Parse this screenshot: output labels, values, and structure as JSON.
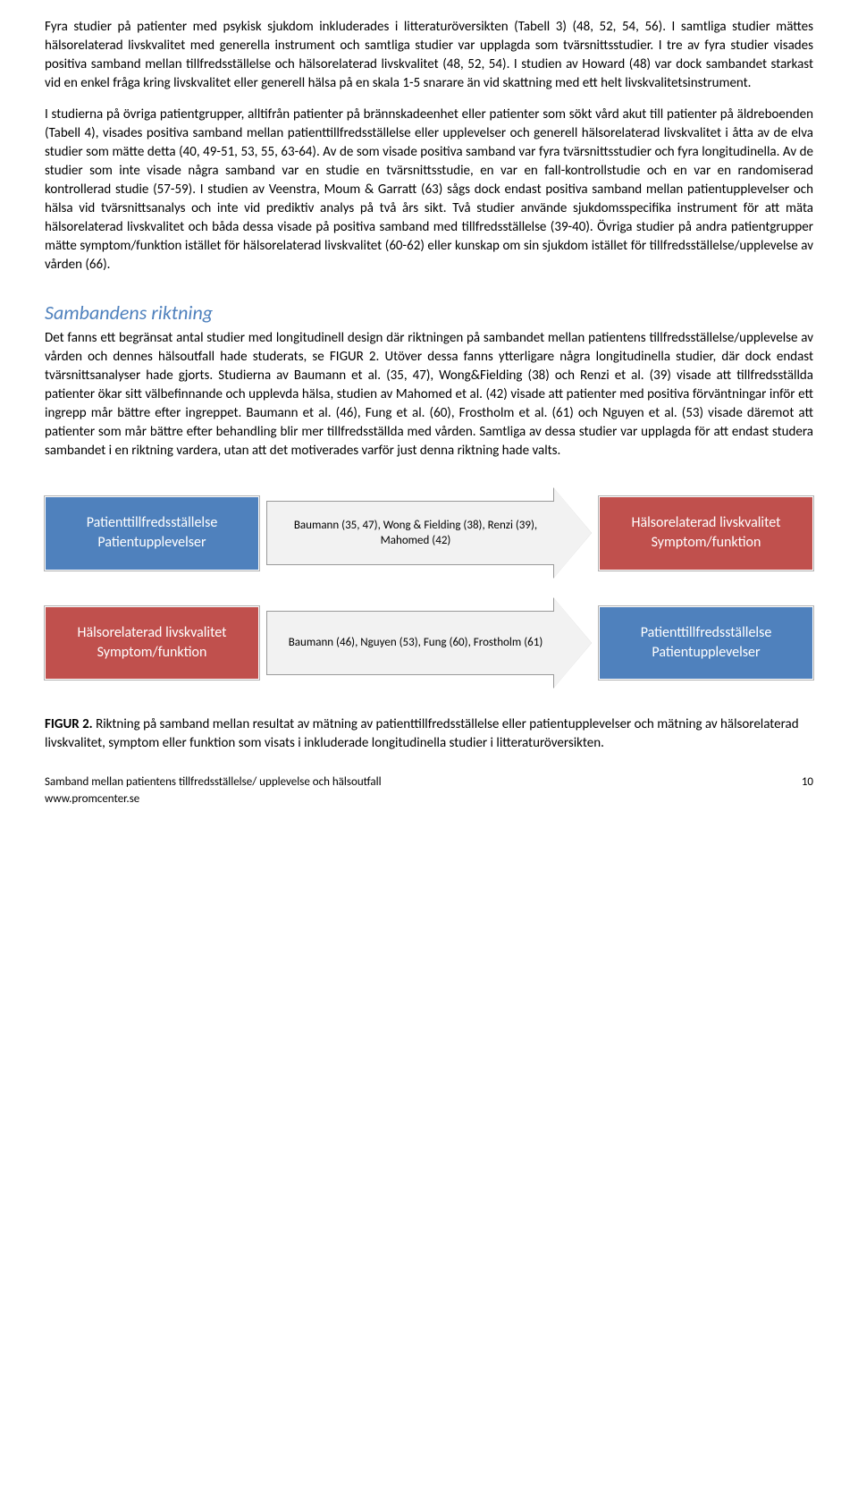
{
  "paragraphs": {
    "p1": "Fyra studier på patienter med psykisk sjukdom inkluderades i litteraturöversikten (Tabell 3) (48, 52, 54, 56). I samtliga studier mättes hälsorelaterad livskvalitet med generella instrument och samtliga studier var upplagda som tvärsnittsstudier. I tre av fyra studier visades positiva samband mellan tillfredsställelse och hälsorelaterad livskvalitet (48, 52, 54). I studien av Howard (48) var dock sambandet starkast vid en enkel fråga kring livskvalitet eller generell hälsa på en skala 1-5 snarare än vid skattning med ett helt livskvalitetsinstrument.",
    "p2": "I studierna på övriga patientgrupper, alltifrån patienter på brännskadeenhet eller patienter som sökt vård akut till patienter på äldreboenden (Tabell 4), visades positiva samband mellan patienttillfredsställelse eller upplevelser och generell hälsorelaterad livskvalitet i åtta av de elva studier som mätte detta (40, 49-51, 53, 55, 63-64). Av de som visade positiva samband var fyra tvärsnittsstudier och fyra longitudinella. Av de studier som inte visade några samband var en studie en tvärsnittsstudie, en var en fall-kontrollstudie och en var en randomiserad kontrollerad studie (57-59). I studien av Veenstra, Moum & Garratt (63) sågs dock endast positiva samband mellan patientupplevelser och hälsa vid tvärsnittsanalys och inte vid prediktiv analys på två års sikt. Två studier använde sjukdomsspecifika instrument för att mäta hälsorelaterad livskvalitet och båda dessa visade på positiva samband med tillfredsställelse (39-40). Övriga studier på andra patientgrupper mätte symptom/funktion istället för hälsorelaterad livskvalitet (60-62) eller kunskap om sin sjukdom istället för tillfredsställelse/upplevelse av vården (66).",
    "p3": "Det fanns ett begränsat antal studier med longitudinell design där riktningen på sambandet mellan patientens tillfredsställelse/upplevelse av vården och dennes hälsoutfall hade studerats, se FIGUR 2. Utöver dessa fanns ytterligare några longitudinella studier, där dock endast tvärsnittsanalyser hade gjorts. Studierna av Baumann et al. (35, 47), Wong&Fielding (38) och Renzi et al. (39) visade att tillfredsställda patienter ökar sitt välbefinnande och upplevda hälsa, studien av Mahomed et al. (42) visade att patienter med positiva förväntningar inför ett ingrepp mår bättre efter ingreppet. Baumann et al. (46), Fung et al. (60), Frostholm et al. (61) och Nguyen et al. (53) visade däremot att patienter som mår bättre efter behandling blir mer tillfredsställda med vården. Samtliga av dessa studier var upplagda för att endast studera sambandet i en riktning vardera, utan att det motiverades varför just denna riktning hade valts."
  },
  "heading": "Sambandens riktning",
  "diagram": {
    "row1": {
      "left": {
        "line1": "Patienttillfredsställelse",
        "line2": "Patientupplevelser",
        "color": "#4f81bd"
      },
      "arrow": "Baumann (35, 47), Wong & Fielding (38), Renzi (39), Mahomed (42)",
      "right": {
        "line1": "Hälsorelaterad livskvalitet",
        "line2": "Symptom/funktion",
        "color": "#c0504d"
      }
    },
    "row2": {
      "left": {
        "line1": "Hälsorelaterad livskvalitet",
        "line2": "Symptom/funktion",
        "color": "#c0504d"
      },
      "arrow": "Baumann (46), Nguyen (53), Fung (60), Frostholm (61)",
      "right": {
        "line1": "Patienttillfredsställelse",
        "line2": "Patientupplevelser",
        "color": "#4f81bd"
      }
    }
  },
  "figure_caption": {
    "label": "FIGUR 2.",
    "text": " Riktning på samband mellan resultat av mätning av patienttillfredsställelse eller patientupplevelser och mätning av hälsorelaterad livskvalitet, symptom eller funktion som visats i inkluderade longitudinella studier i litteraturöversikten."
  },
  "footer": {
    "left_line1": "Samband mellan patientens tillfredsställelse/ upplevelse och hälsoutfall",
    "left_line2": "www.promcenter.se",
    "page": "10"
  }
}
